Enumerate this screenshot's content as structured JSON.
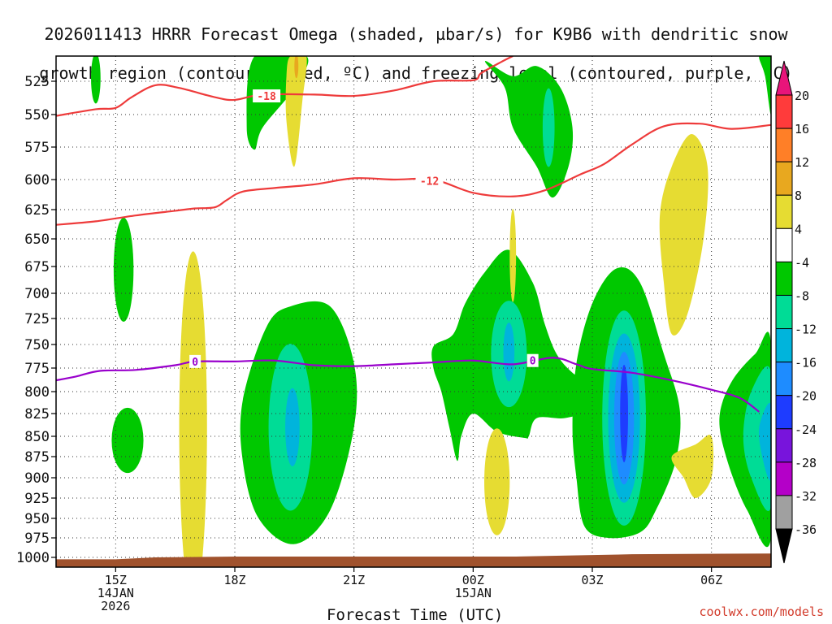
{
  "chart_data": {
    "type": "heatmap",
    "title_line1": "2026011413 HRRR Forecast Omega (shaded, µbar/s) for K9B6 with dendritic snow",
    "title_line2": "growth region (contoured, red, ºC) and freezing level (contoured, purple, ºC)",
    "xlabel": "Forecast Time (UTC)",
    "ylabel": "Pressure (hPa)",
    "credit": "coolwx.com/models",
    "xlim": [
      13.5,
      31.5
    ],
    "ylim": [
      1005,
      500
    ],
    "y_ticks": [
      525,
      550,
      575,
      600,
      625,
      650,
      675,
      700,
      725,
      750,
      775,
      800,
      825,
      850,
      875,
      900,
      925,
      950,
      975,
      1000
    ],
    "x_ticks": [
      {
        "t": 15,
        "label": "15Z",
        "sub1": "14JAN",
        "sub2": "2026"
      },
      {
        "t": 18,
        "label": "18Z",
        "sub1": "",
        "sub2": ""
      },
      {
        "t": 21,
        "label": "21Z",
        "sub1": "",
        "sub2": ""
      },
      {
        "t": 24,
        "label": "00Z",
        "sub1": "15JAN",
        "sub2": ""
      },
      {
        "t": 27,
        "label": "03Z",
        "sub1": "",
        "sub2": ""
      },
      {
        "t": 30,
        "label": "06Z",
        "sub1": "",
        "sub2": ""
      }
    ],
    "colorbar": {
      "labels": [
        "20",
        "16",
        "12",
        "8",
        "4",
        "-4",
        "-8",
        "-12",
        "-16",
        "-20",
        "-24",
        "-28",
        "-32",
        "-36"
      ],
      "colors": [
        "#e8147a",
        "#ff3b3b",
        "#ff7f27",
        "#e8a81f",
        "#e6dc32",
        "#ffffff",
        "#00c800",
        "#00dc96",
        "#00b4dc",
        "#1e8cff",
        "#1e3cff",
        "#7814dc",
        "#b400c8",
        "#a0a0a0",
        "#000000"
      ]
    },
    "contours_red": [
      {
        "label": "-18",
        "points": [
          [
            13.5,
            551
          ],
          [
            14.5,
            546
          ],
          [
            15,
            545
          ],
          [
            15.4,
            537
          ],
          [
            16,
            528
          ],
          [
            16.6,
            530
          ],
          [
            17.5,
            537
          ],
          [
            18,
            539
          ],
          [
            18.7,
            535
          ],
          [
            20,
            535
          ],
          [
            21,
            536
          ],
          [
            22,
            532
          ],
          [
            23,
            525
          ],
          [
            24,
            524
          ],
          [
            24.2,
            517
          ],
          [
            24.7,
            506
          ],
          [
            25,
            500
          ]
        ]
      },
      {
        "label": "-12",
        "points": [
          [
            13.5,
            638
          ],
          [
            14.5,
            635
          ],
          [
            15.5,
            630
          ],
          [
            16.5,
            626
          ],
          [
            17,
            624
          ],
          [
            17.5,
            623
          ],
          [
            17.8,
            617
          ],
          [
            18.2,
            610
          ],
          [
            19,
            607
          ],
          [
            20,
            604
          ],
          [
            21,
            599
          ],
          [
            22,
            600
          ],
          [
            23,
            600
          ],
          [
            24,
            611
          ],
          [
            25,
            614
          ],
          [
            25.8,
            609
          ],
          [
            26.7,
            596
          ],
          [
            27.3,
            588
          ],
          [
            28,
            573
          ],
          [
            28.8,
            559
          ],
          [
            29.7,
            557
          ],
          [
            30.5,
            561
          ],
          [
            31.5,
            558
          ]
        ]
      }
    ],
    "contours_purple": [
      {
        "label": "0",
        "points": [
          [
            13.5,
            788
          ],
          [
            14,
            784
          ],
          [
            14.6,
            778
          ],
          [
            15.5,
            777
          ],
          [
            16.5,
            772
          ],
          [
            17,
            768
          ],
          [
            18,
            768
          ],
          [
            19,
            767
          ],
          [
            20,
            772
          ],
          [
            21,
            773
          ],
          [
            22,
            771
          ],
          [
            23,
            769
          ],
          [
            24,
            767
          ],
          [
            25,
            771
          ],
          [
            26,
            764
          ],
          [
            26.6,
            771
          ],
          [
            27,
            776
          ],
          [
            28,
            780
          ],
          [
            29,
            788
          ],
          [
            30,
            798
          ],
          [
            30.7,
            807
          ],
          [
            31.2,
            823
          ]
        ]
      }
    ],
    "label_positions": [
      {
        "text": "-18",
        "t": 18.8,
        "p": 536
      },
      {
        "text": "-12",
        "t": 22.9,
        "p": 601
      },
      {
        "text": "0",
        "t": 17.0,
        "p": 768
      },
      {
        "text": "0",
        "t": 25.5,
        "p": 767
      }
    ],
    "ground": [
      [
        13.5,
        1001
      ],
      [
        15,
        1001
      ],
      [
        16,
        1000
      ],
      [
        18,
        999
      ],
      [
        21,
        999
      ],
      [
        24,
        999
      ],
      [
        25,
        999
      ],
      [
        27,
        997
      ],
      [
        28,
        996
      ],
      [
        31.5,
        995
      ]
    ],
    "fields": [
      {
        "color": "#00c800",
        "shape": "ellipse",
        "t": 14.5,
        "p": 522,
        "rt": 0.12,
        "rp": 22
      },
      {
        "color": "#00c800",
        "shape": "poly",
        "points": [
          [
            18.5,
            500
          ],
          [
            18.3,
            560
          ],
          [
            18.5,
            577
          ],
          [
            18.7,
            560
          ],
          [
            19.5,
            530
          ],
          [
            19.8,
            500
          ]
        ]
      },
      {
        "color": "#00c800",
        "shape": "ellipse",
        "t": 15.2,
        "p": 678,
        "rt": 0.25,
        "rp": 48
      },
      {
        "color": "#00c800",
        "shape": "ellipse",
        "t": 15.3,
        "p": 855,
        "rt": 0.4,
        "rp": 38
      },
      {
        "color": "#00c800",
        "shape": "poly",
        "points": [
          [
            19.4,
            713
          ],
          [
            20.4,
            713
          ],
          [
            21,
            770
          ],
          [
            21.0,
            840
          ],
          [
            20.4,
            940
          ],
          [
            19.5,
            983
          ],
          [
            18.6,
            950
          ],
          [
            18.2,
            880
          ],
          [
            18.2,
            810
          ],
          [
            18.8,
            733
          ]
        ]
      },
      {
        "color": "#00dc96",
        "shape": "ellipse",
        "t": 19.4,
        "p": 840,
        "rt": 0.55,
        "rp": 95
      },
      {
        "color": "#00b4dc",
        "shape": "ellipse",
        "t": 19.45,
        "p": 840,
        "rt": 0.18,
        "rp": 45
      },
      {
        "color": "#00c800",
        "shape": "poly",
        "points": [
          [
            24.3,
            505
          ],
          [
            25,
            520
          ],
          [
            25.6,
            510
          ],
          [
            26.2,
            530
          ],
          [
            26.5,
            560
          ],
          [
            26.4,
            590
          ],
          [
            26,
            615
          ],
          [
            25.6,
            590
          ],
          [
            25,
            560
          ],
          [
            24.8,
            530
          ]
        ]
      },
      {
        "color": "#00dc96",
        "shape": "ellipse",
        "t": 25.9,
        "p": 560,
        "rt": 0.15,
        "rp": 30
      },
      {
        "color": "#00c800",
        "shape": "poly",
        "points": [
          [
            23.0,
            752
          ],
          [
            23.5,
            740
          ],
          [
            23.8,
            710
          ],
          [
            24.3,
            680
          ],
          [
            24.9,
            660
          ],
          [
            25.5,
            690
          ],
          [
            25.8,
            730
          ],
          [
            26.1,
            760
          ],
          [
            26.5,
            780
          ],
          [
            27.0,
            795
          ],
          [
            26.9,
            820
          ],
          [
            26.3,
            830
          ],
          [
            25.6,
            830
          ],
          [
            25.4,
            850
          ],
          [
            25.3,
            852
          ],
          [
            24.6,
            845
          ],
          [
            24.0,
            825
          ],
          [
            23.7,
            850
          ],
          [
            23.6,
            880
          ],
          [
            23.4,
            840
          ],
          [
            23.2,
            800
          ],
          [
            23.0,
            775
          ]
        ]
      },
      {
        "color": "#00dc96",
        "shape": "ellipse",
        "t": 24.9,
        "p": 760,
        "rt": 0.45,
        "rp": 55
      },
      {
        "color": "#00b4dc",
        "shape": "ellipse",
        "t": 24.9,
        "p": 758,
        "rt": 0.14,
        "rp": 30
      },
      {
        "color": "#00c800",
        "shape": "poly",
        "points": [
          [
            27.6,
            677
          ],
          [
            28.2,
            690
          ],
          [
            28.8,
            760
          ],
          [
            29.2,
            820
          ],
          [
            29.1,
            880
          ],
          [
            28.6,
            940
          ],
          [
            28.2,
            968
          ],
          [
            27.4,
            975
          ],
          [
            26.8,
            960
          ],
          [
            26.6,
            900
          ],
          [
            26.5,
            840
          ],
          [
            26.6,
            770
          ],
          [
            27.0,
            710
          ]
        ]
      },
      {
        "color": "#00dc96",
        "shape": "ellipse",
        "t": 27.8,
        "p": 830,
        "rt": 0.55,
        "rp": 120
      },
      {
        "color": "#00b4dc",
        "shape": "ellipse",
        "t": 27.8,
        "p": 830,
        "rt": 0.4,
        "rp": 95
      },
      {
        "color": "#1e8cff",
        "shape": "ellipse",
        "t": 27.8,
        "p": 830,
        "rt": 0.25,
        "rp": 75
      },
      {
        "color": "#1e3cff",
        "shape": "ellipse",
        "t": 27.8,
        "p": 825,
        "rt": 0.1,
        "rp": 55
      },
      {
        "color": "#00c800",
        "shape": "poly",
        "points": [
          [
            31.5,
            750
          ],
          [
            31.1,
            760
          ],
          [
            30.5,
            790
          ],
          [
            30.2,
            830
          ],
          [
            30.4,
            880
          ],
          [
            30.9,
            940
          ],
          [
            31.5,
            975
          ]
        ]
      },
      {
        "color": "#00dc96",
        "shape": "poly",
        "points": [
          [
            31.5,
            780
          ],
          [
            31.0,
            800
          ],
          [
            30.8,
            850
          ],
          [
            31.0,
            900
          ],
          [
            31.5,
            935
          ]
        ]
      },
      {
        "color": "#00b4dc",
        "shape": "poly",
        "points": [
          [
            31.5,
            815
          ],
          [
            31.2,
            840
          ],
          [
            31.3,
            880
          ],
          [
            31.5,
            900
          ]
        ]
      },
      {
        "color": "#00c800",
        "shape": "poly",
        "points": [
          [
            31.2,
            500
          ],
          [
            31.5,
            500
          ],
          [
            31.5,
            550
          ],
          [
            31.35,
            520
          ]
        ]
      },
      {
        "color": "#e6dc32",
        "shape": "poly",
        "points": [
          [
            19.4,
            500
          ],
          [
            19.8,
            500
          ],
          [
            19.7,
            540
          ],
          [
            19.5,
            590
          ],
          [
            19.3,
            555
          ],
          [
            19.3,
            520
          ]
        ]
      },
      {
        "color": "#e8a81f",
        "shape": "ellipse",
        "t": 19.55,
        "p": 510,
        "rt": 0.05,
        "rp": 14
      },
      {
        "color": "#e6dc32",
        "shape": "poly",
        "points": [
          [
            29.5,
            565
          ],
          [
            29.9,
            590
          ],
          [
            29.8,
            650
          ],
          [
            29.4,
            720
          ],
          [
            29.0,
            740
          ],
          [
            28.8,
            690
          ],
          [
            28.7,
            630
          ],
          [
            29.0,
            590
          ]
        ]
      },
      {
        "color": "#e6dc32",
        "shape": "ellipse",
        "t": 16.95,
        "p": 840,
        "rt": 0.35,
        "rp": 210
      },
      {
        "color": "#e6dc32",
        "shape": "ellipse",
        "t": 25.0,
        "p": 665,
        "rt": 0.08,
        "rp": 42
      },
      {
        "color": "#e6dc32",
        "shape": "ellipse",
        "t": 24.6,
        "p": 905,
        "rt": 0.32,
        "rp": 65
      },
      {
        "color": "#e6dc32",
        "shape": "poly",
        "points": [
          [
            30.0,
            850
          ],
          [
            30.0,
            900
          ],
          [
            29.6,
            925
          ],
          [
            29.3,
            900
          ],
          [
            29.0,
            875
          ],
          [
            29.6,
            860
          ]
        ]
      }
    ]
  }
}
